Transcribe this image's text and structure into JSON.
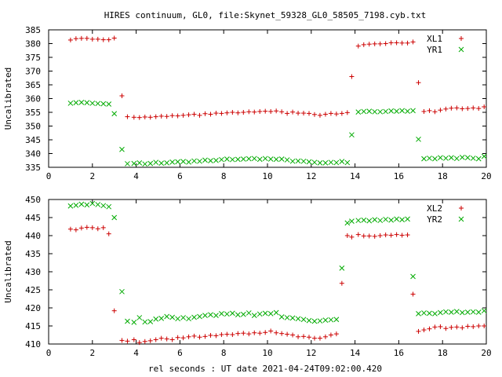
{
  "figure": {
    "title": "HIRES continuum, GL0, file:Skynet_59328_GL0_58505_7198.cyb.txt",
    "xlabel": "rel seconds : UT date 2021-04-24T09:02:00.420"
  },
  "chart_data": [
    {
      "type": "scatter",
      "ylabel": "Uncalibrated",
      "xlim": [
        0,
        20
      ],
      "ylim": [
        335,
        385
      ],
      "xticks": [
        0,
        2,
        4,
        6,
        8,
        10,
        12,
        14,
        16,
        18,
        20
      ],
      "yticks": [
        335,
        340,
        345,
        350,
        355,
        360,
        365,
        370,
        375,
        380,
        385
      ],
      "grid": false,
      "legend": "top-right",
      "series": [
        {
          "name": "XL1",
          "marker": "plus",
          "color": "#cc0000",
          "x": [
            1.0,
            1.25,
            1.5,
            1.75,
            2.0,
            2.25,
            2.5,
            2.75,
            3.0,
            3.35,
            3.6,
            3.9,
            4.15,
            4.4,
            4.65,
            4.9,
            5.15,
            5.4,
            5.65,
            5.9,
            6.15,
            6.4,
            6.65,
            6.9,
            7.15,
            7.4,
            7.65,
            7.9,
            8.15,
            8.4,
            8.65,
            8.9,
            9.15,
            9.4,
            9.65,
            9.9,
            10.15,
            10.4,
            10.65,
            10.9,
            11.15,
            11.4,
            11.65,
            11.9,
            12.15,
            12.4,
            12.65,
            12.9,
            13.15,
            13.4,
            13.65,
            13.85,
            14.15,
            14.4,
            14.65,
            14.9,
            15.15,
            15.4,
            15.65,
            15.9,
            16.15,
            16.4,
            16.65,
            16.9,
            17.15,
            17.4,
            17.65,
            17.9,
            18.15,
            18.4,
            18.65,
            18.9,
            19.15,
            19.4,
            19.65,
            19.9
          ],
          "y": [
            381.3,
            381.8,
            381.9,
            381.9,
            381.6,
            381.6,
            381.4,
            381.4,
            382.0,
            361.0,
            353.4,
            353.2,
            353.1,
            353.3,
            353.2,
            353.4,
            353.6,
            353.5,
            353.8,
            353.7,
            353.9,
            354.1,
            354.3,
            353.9,
            354.5,
            354.3,
            354.7,
            354.6,
            354.8,
            355.0,
            354.8,
            355.0,
            355.2,
            355.1,
            355.3,
            355.4,
            355.3,
            355.5,
            355.2,
            354.6,
            355.1,
            354.7,
            354.7,
            354.6,
            354.2,
            353.9,
            354.3,
            354.6,
            354.4,
            354.6,
            354.9,
            368.0,
            379.1,
            379.6,
            379.8,
            379.9,
            379.9,
            380.0,
            380.3,
            380.3,
            380.2,
            380.2,
            380.6,
            365.8,
            355.3,
            355.6,
            355.2,
            355.8,
            356.2,
            356.5,
            356.6,
            356.3,
            356.4,
            356.6,
            356.4,
            357.0
          ]
        },
        {
          "name": "YR1",
          "marker": "cross",
          "color": "#00aa00",
          "x": [
            1.0,
            1.25,
            1.5,
            1.75,
            2.0,
            2.25,
            2.5,
            2.75,
            3.0,
            3.35,
            3.6,
            3.9,
            4.15,
            4.4,
            4.65,
            4.9,
            5.15,
            5.4,
            5.65,
            5.9,
            6.15,
            6.4,
            6.65,
            6.9,
            7.15,
            7.4,
            7.65,
            7.9,
            8.15,
            8.4,
            8.65,
            8.9,
            9.15,
            9.4,
            9.65,
            9.9,
            10.15,
            10.4,
            10.65,
            10.9,
            11.15,
            11.4,
            11.65,
            11.9,
            12.15,
            12.4,
            12.65,
            12.9,
            13.15,
            13.4,
            13.65,
            13.85,
            14.15,
            14.4,
            14.65,
            14.9,
            15.15,
            15.4,
            15.65,
            15.9,
            16.15,
            16.4,
            16.65,
            16.9,
            17.15,
            17.4,
            17.65,
            17.9,
            18.15,
            18.4,
            18.65,
            18.9,
            19.15,
            19.4,
            19.65,
            19.9
          ],
          "y": [
            358.3,
            358.5,
            358.6,
            358.5,
            358.3,
            358.2,
            358.1,
            358.0,
            354.5,
            341.5,
            336.3,
            336.4,
            336.6,
            336.2,
            336.4,
            336.8,
            336.5,
            336.6,
            336.9,
            337.0,
            337.1,
            336.9,
            337.3,
            337.2,
            337.6,
            337.4,
            337.5,
            337.8,
            338.0,
            337.8,
            337.9,
            338.0,
            338.1,
            338.2,
            337.9,
            338.2,
            338.0,
            337.9,
            338.0,
            337.7,
            337.2,
            337.3,
            337.2,
            337.0,
            336.8,
            336.6,
            336.6,
            336.8,
            336.7,
            337.1,
            336.7,
            346.8,
            355.1,
            355.3,
            355.4,
            355.2,
            355.2,
            355.3,
            355.5,
            355.4,
            355.6,
            355.4,
            355.6,
            345.2,
            338.1,
            338.3,
            338.1,
            338.5,
            338.3,
            338.5,
            338.2,
            338.6,
            338.5,
            338.3,
            338.1,
            339.0
          ]
        }
      ]
    },
    {
      "type": "scatter",
      "ylabel": "Uncalibrated",
      "xlim": [
        0,
        20
      ],
      "ylim": [
        410,
        450
      ],
      "xticks": [
        0,
        2,
        4,
        6,
        8,
        10,
        12,
        14,
        16,
        18,
        20
      ],
      "yticks": [
        410,
        415,
        420,
        425,
        430,
        435,
        440,
        445,
        450
      ],
      "grid": false,
      "legend": "top-right",
      "series": [
        {
          "name": "XL2",
          "marker": "plus",
          "color": "#cc0000",
          "x": [
            1.0,
            1.25,
            1.5,
            1.75,
            2.0,
            2.25,
            2.5,
            2.75,
            3.0,
            3.35,
            3.6,
            3.9,
            4.15,
            4.4,
            4.65,
            4.9,
            5.15,
            5.4,
            5.65,
            5.9,
            6.15,
            6.4,
            6.65,
            6.9,
            7.15,
            7.4,
            7.65,
            7.9,
            8.15,
            8.4,
            8.65,
            8.9,
            9.15,
            9.4,
            9.65,
            9.9,
            10.15,
            10.4,
            10.65,
            10.9,
            11.15,
            11.4,
            11.65,
            11.9,
            12.15,
            12.4,
            12.65,
            12.9,
            13.15,
            13.4,
            13.65,
            13.85,
            14.15,
            14.4,
            14.65,
            14.9,
            15.15,
            15.4,
            15.65,
            15.9,
            16.15,
            16.4,
            16.65,
            16.9,
            17.15,
            17.4,
            17.65,
            17.9,
            18.15,
            18.4,
            18.65,
            18.9,
            19.15,
            19.4,
            19.65,
            19.9
          ],
          "y": [
            441.8,
            441.6,
            442.1,
            442.3,
            442.2,
            441.9,
            442.2,
            440.5,
            419.2,
            411.0,
            410.8,
            411.2,
            410.4,
            410.7,
            410.9,
            411.2,
            411.6,
            411.4,
            411.2,
            411.8,
            411.7,
            412.0,
            412.2,
            411.9,
            412.1,
            412.4,
            412.3,
            412.6,
            412.7,
            412.6,
            412.9,
            413.0,
            412.8,
            413.1,
            413.0,
            413.2,
            413.6,
            413.1,
            412.9,
            412.7,
            412.5,
            412.0,
            412.1,
            411.9,
            411.6,
            411.6,
            412.0,
            412.5,
            412.8,
            426.8,
            440.0,
            439.6,
            440.3,
            439.9,
            439.9,
            439.8,
            440.0,
            440.2,
            440.1,
            440.3,
            440.1,
            440.2,
            423.8,
            413.5,
            413.9,
            414.2,
            414.7,
            414.8,
            414.3,
            414.6,
            414.7,
            414.5,
            414.9,
            414.8,
            415.0,
            415.0
          ],
          "x_note": ""
        },
        {
          "name": "YR2",
          "marker": "cross",
          "color": "#00aa00",
          "x": [
            1.0,
            1.25,
            1.5,
            1.75,
            2.0,
            2.25,
            2.5,
            2.75,
            3.0,
            3.35,
            3.6,
            3.9,
            4.15,
            4.4,
            4.65,
            4.9,
            5.15,
            5.4,
            5.65,
            5.9,
            6.15,
            6.4,
            6.65,
            6.9,
            7.15,
            7.4,
            7.65,
            7.9,
            8.15,
            8.4,
            8.65,
            8.9,
            9.15,
            9.4,
            9.65,
            9.9,
            10.15,
            10.4,
            10.65,
            10.9,
            11.15,
            11.4,
            11.65,
            11.9,
            12.15,
            12.4,
            12.65,
            12.9,
            13.15,
            13.4,
            13.65,
            13.85,
            14.15,
            14.4,
            14.65,
            14.9,
            15.15,
            15.4,
            15.65,
            15.9,
            16.15,
            16.4,
            16.65,
            16.9,
            17.15,
            17.4,
            17.65,
            17.9,
            18.15,
            18.4,
            18.65,
            18.9,
            19.15,
            19.4,
            19.65,
            19.9
          ],
          "y": [
            448.2,
            448.4,
            448.7,
            448.5,
            448.9,
            448.6,
            448.3,
            448.0,
            445.0,
            424.5,
            416.3,
            416.0,
            417.3,
            416.1,
            416.2,
            416.9,
            417.1,
            417.6,
            417.4,
            417.0,
            417.3,
            417.0,
            417.4,
            417.6,
            417.9,
            418.1,
            417.9,
            418.4,
            418.3,
            418.5,
            418.1,
            418.2,
            418.6,
            417.9,
            418.3,
            418.5,
            418.4,
            418.7,
            417.5,
            417.3,
            417.2,
            417.0,
            416.8,
            416.5,
            416.3,
            416.4,
            416.6,
            416.7,
            416.8,
            431.0,
            443.5,
            444.0,
            444.2,
            444.3,
            444.1,
            444.4,
            444.2,
            444.5,
            444.3,
            444.6,
            444.4,
            444.6,
            428.7,
            418.4,
            418.6,
            418.5,
            418.4,
            418.7,
            418.9,
            418.8,
            419.0,
            418.7,
            418.8,
            418.9,
            418.8,
            419.2
          ]
        }
      ]
    }
  ]
}
